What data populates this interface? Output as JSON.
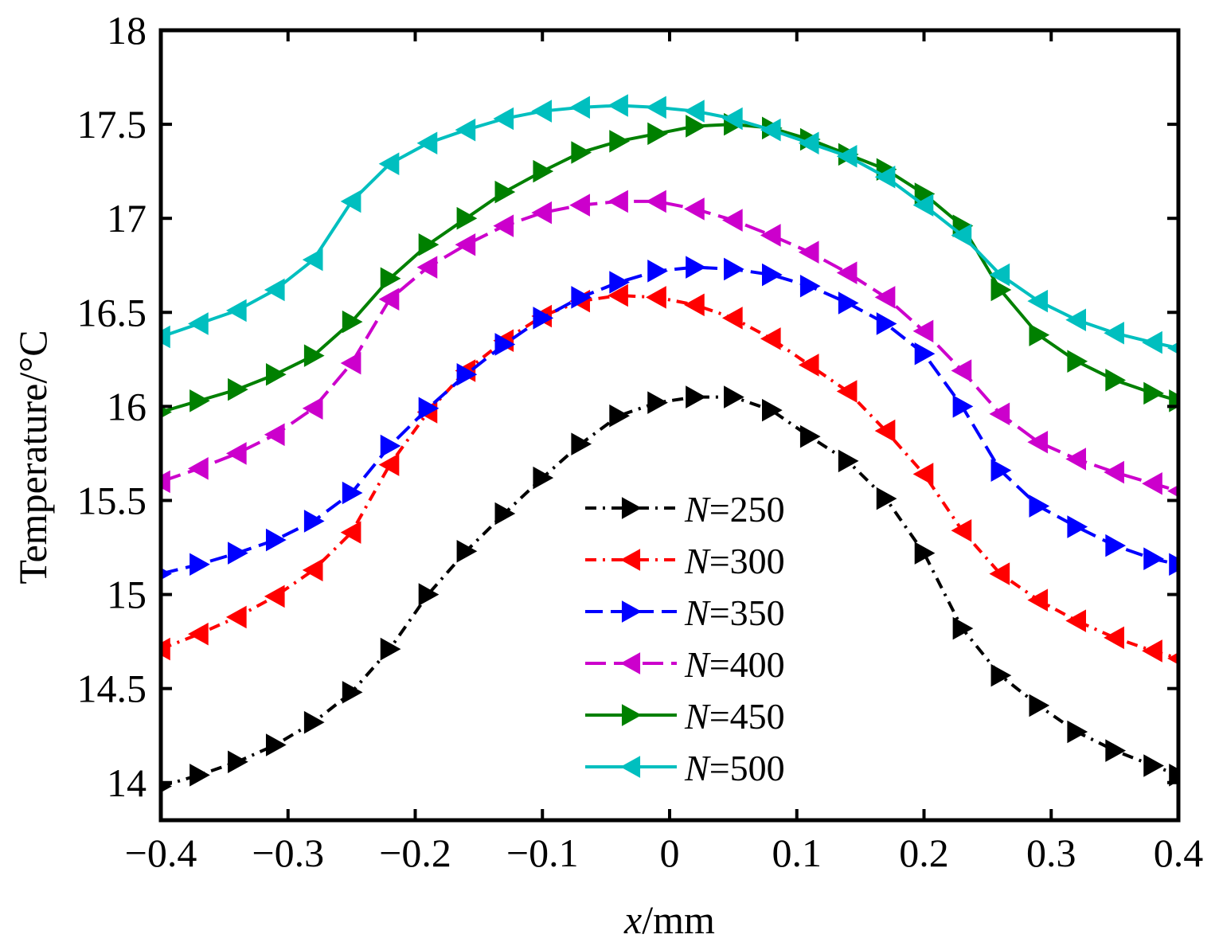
{
  "chart_data": {
    "type": "line",
    "title": "",
    "xlabel_var": "x",
    "xlabel_unit": "/mm",
    "ylabel": "Temperature/°C",
    "xlim": [
      -0.4,
      0.4
    ],
    "ylim": [
      13.8,
      18
    ],
    "xticks": [
      -0.4,
      -0.3,
      -0.2,
      -0.1,
      0,
      0.1,
      0.2,
      0.3,
      0.4
    ],
    "xtick_labels": [
      "−0.4",
      "−0.3",
      "−0.2",
      "−0.1",
      "0",
      "0.1",
      "0.2",
      "0.3",
      "0.4"
    ],
    "yticks": [
      14,
      14.5,
      15,
      15.5,
      16,
      16.5,
      17,
      17.5,
      18
    ],
    "ytick_labels": [
      "14",
      "14.5",
      "15",
      "15.5",
      "16",
      "16.5",
      "17",
      "17.5",
      "18"
    ],
    "grid": false,
    "legend_position": "center",
    "x": [
      -0.4,
      -0.37,
      -0.34,
      -0.31,
      -0.28,
      -0.25,
      -0.22,
      -0.19,
      -0.16,
      -0.13,
      -0.1,
      -0.07,
      -0.04,
      -0.01,
      0.02,
      0.05,
      0.08,
      0.11,
      0.14,
      0.17,
      0.2,
      0.23,
      0.26,
      0.29,
      0.32,
      0.35,
      0.38,
      0.4
    ],
    "series": [
      {
        "name_var": "N",
        "name_value": "=250",
        "color": "#000000",
        "dash": "dashdot",
        "marker": "triangle-right",
        "values": [
          13.98,
          14.04,
          14.11,
          14.2,
          14.32,
          14.48,
          14.71,
          15.0,
          15.23,
          15.43,
          15.62,
          15.8,
          15.95,
          16.02,
          16.05,
          16.05,
          15.98,
          15.84,
          15.71,
          15.51,
          15.22,
          14.82,
          14.57,
          14.41,
          14.27,
          14.17,
          14.09,
          14.04
        ]
      },
      {
        "name_var": "N",
        "name_value": "=300",
        "color": "#ff0000",
        "dash": "dashdot",
        "marker": "triangle-left",
        "values": [
          14.71,
          14.79,
          14.88,
          14.99,
          15.13,
          15.33,
          15.69,
          15.97,
          16.19,
          16.35,
          16.48,
          16.56,
          16.59,
          16.58,
          16.54,
          16.47,
          16.36,
          16.22,
          16.08,
          15.87,
          15.64,
          15.34,
          15.11,
          14.97,
          14.86,
          14.77,
          14.7,
          14.66
        ]
      },
      {
        "name_var": "N",
        "name_value": "=350",
        "color": "#0000ff",
        "dash": "dashed",
        "marker": "triangle-right",
        "values": [
          15.11,
          15.16,
          15.22,
          15.29,
          15.39,
          15.54,
          15.79,
          15.99,
          16.17,
          16.33,
          16.47,
          16.58,
          16.66,
          16.72,
          16.74,
          16.73,
          16.7,
          16.64,
          16.55,
          16.44,
          16.28,
          16.0,
          15.66,
          15.47,
          15.36,
          15.26,
          15.19,
          15.16
        ]
      },
      {
        "name_var": "N",
        "name_value": "=400",
        "color": "#cc00cc",
        "dash": "longdash",
        "marker": "triangle-left",
        "values": [
          15.6,
          15.67,
          15.75,
          15.85,
          15.99,
          16.23,
          16.57,
          16.74,
          16.86,
          16.96,
          17.03,
          17.07,
          17.09,
          17.09,
          17.05,
          16.99,
          16.91,
          16.82,
          16.71,
          16.58,
          16.4,
          16.19,
          15.96,
          15.81,
          15.72,
          15.65,
          15.59,
          15.55
        ]
      },
      {
        "name_var": "N",
        "name_value": "=450",
        "color": "#008000",
        "dash": "solid",
        "marker": "triangle-right",
        "values": [
          15.97,
          16.03,
          16.09,
          16.17,
          16.27,
          16.45,
          16.68,
          16.86,
          17.0,
          17.14,
          17.25,
          17.35,
          17.41,
          17.45,
          17.49,
          17.5,
          17.48,
          17.42,
          17.34,
          17.26,
          17.13,
          16.96,
          16.62,
          16.38,
          16.24,
          16.14,
          16.07,
          16.03
        ]
      },
      {
        "name_var": "N",
        "name_value": "=500",
        "color": "#00bfbf",
        "dash": "solid",
        "marker": "triangle-left",
        "values": [
          16.37,
          16.44,
          16.51,
          16.62,
          16.78,
          17.09,
          17.29,
          17.4,
          17.47,
          17.53,
          17.57,
          17.59,
          17.6,
          17.59,
          17.57,
          17.53,
          17.47,
          17.4,
          17.33,
          17.22,
          17.07,
          16.91,
          16.7,
          16.56,
          16.46,
          16.39,
          16.34,
          16.31
        ]
      }
    ]
  }
}
